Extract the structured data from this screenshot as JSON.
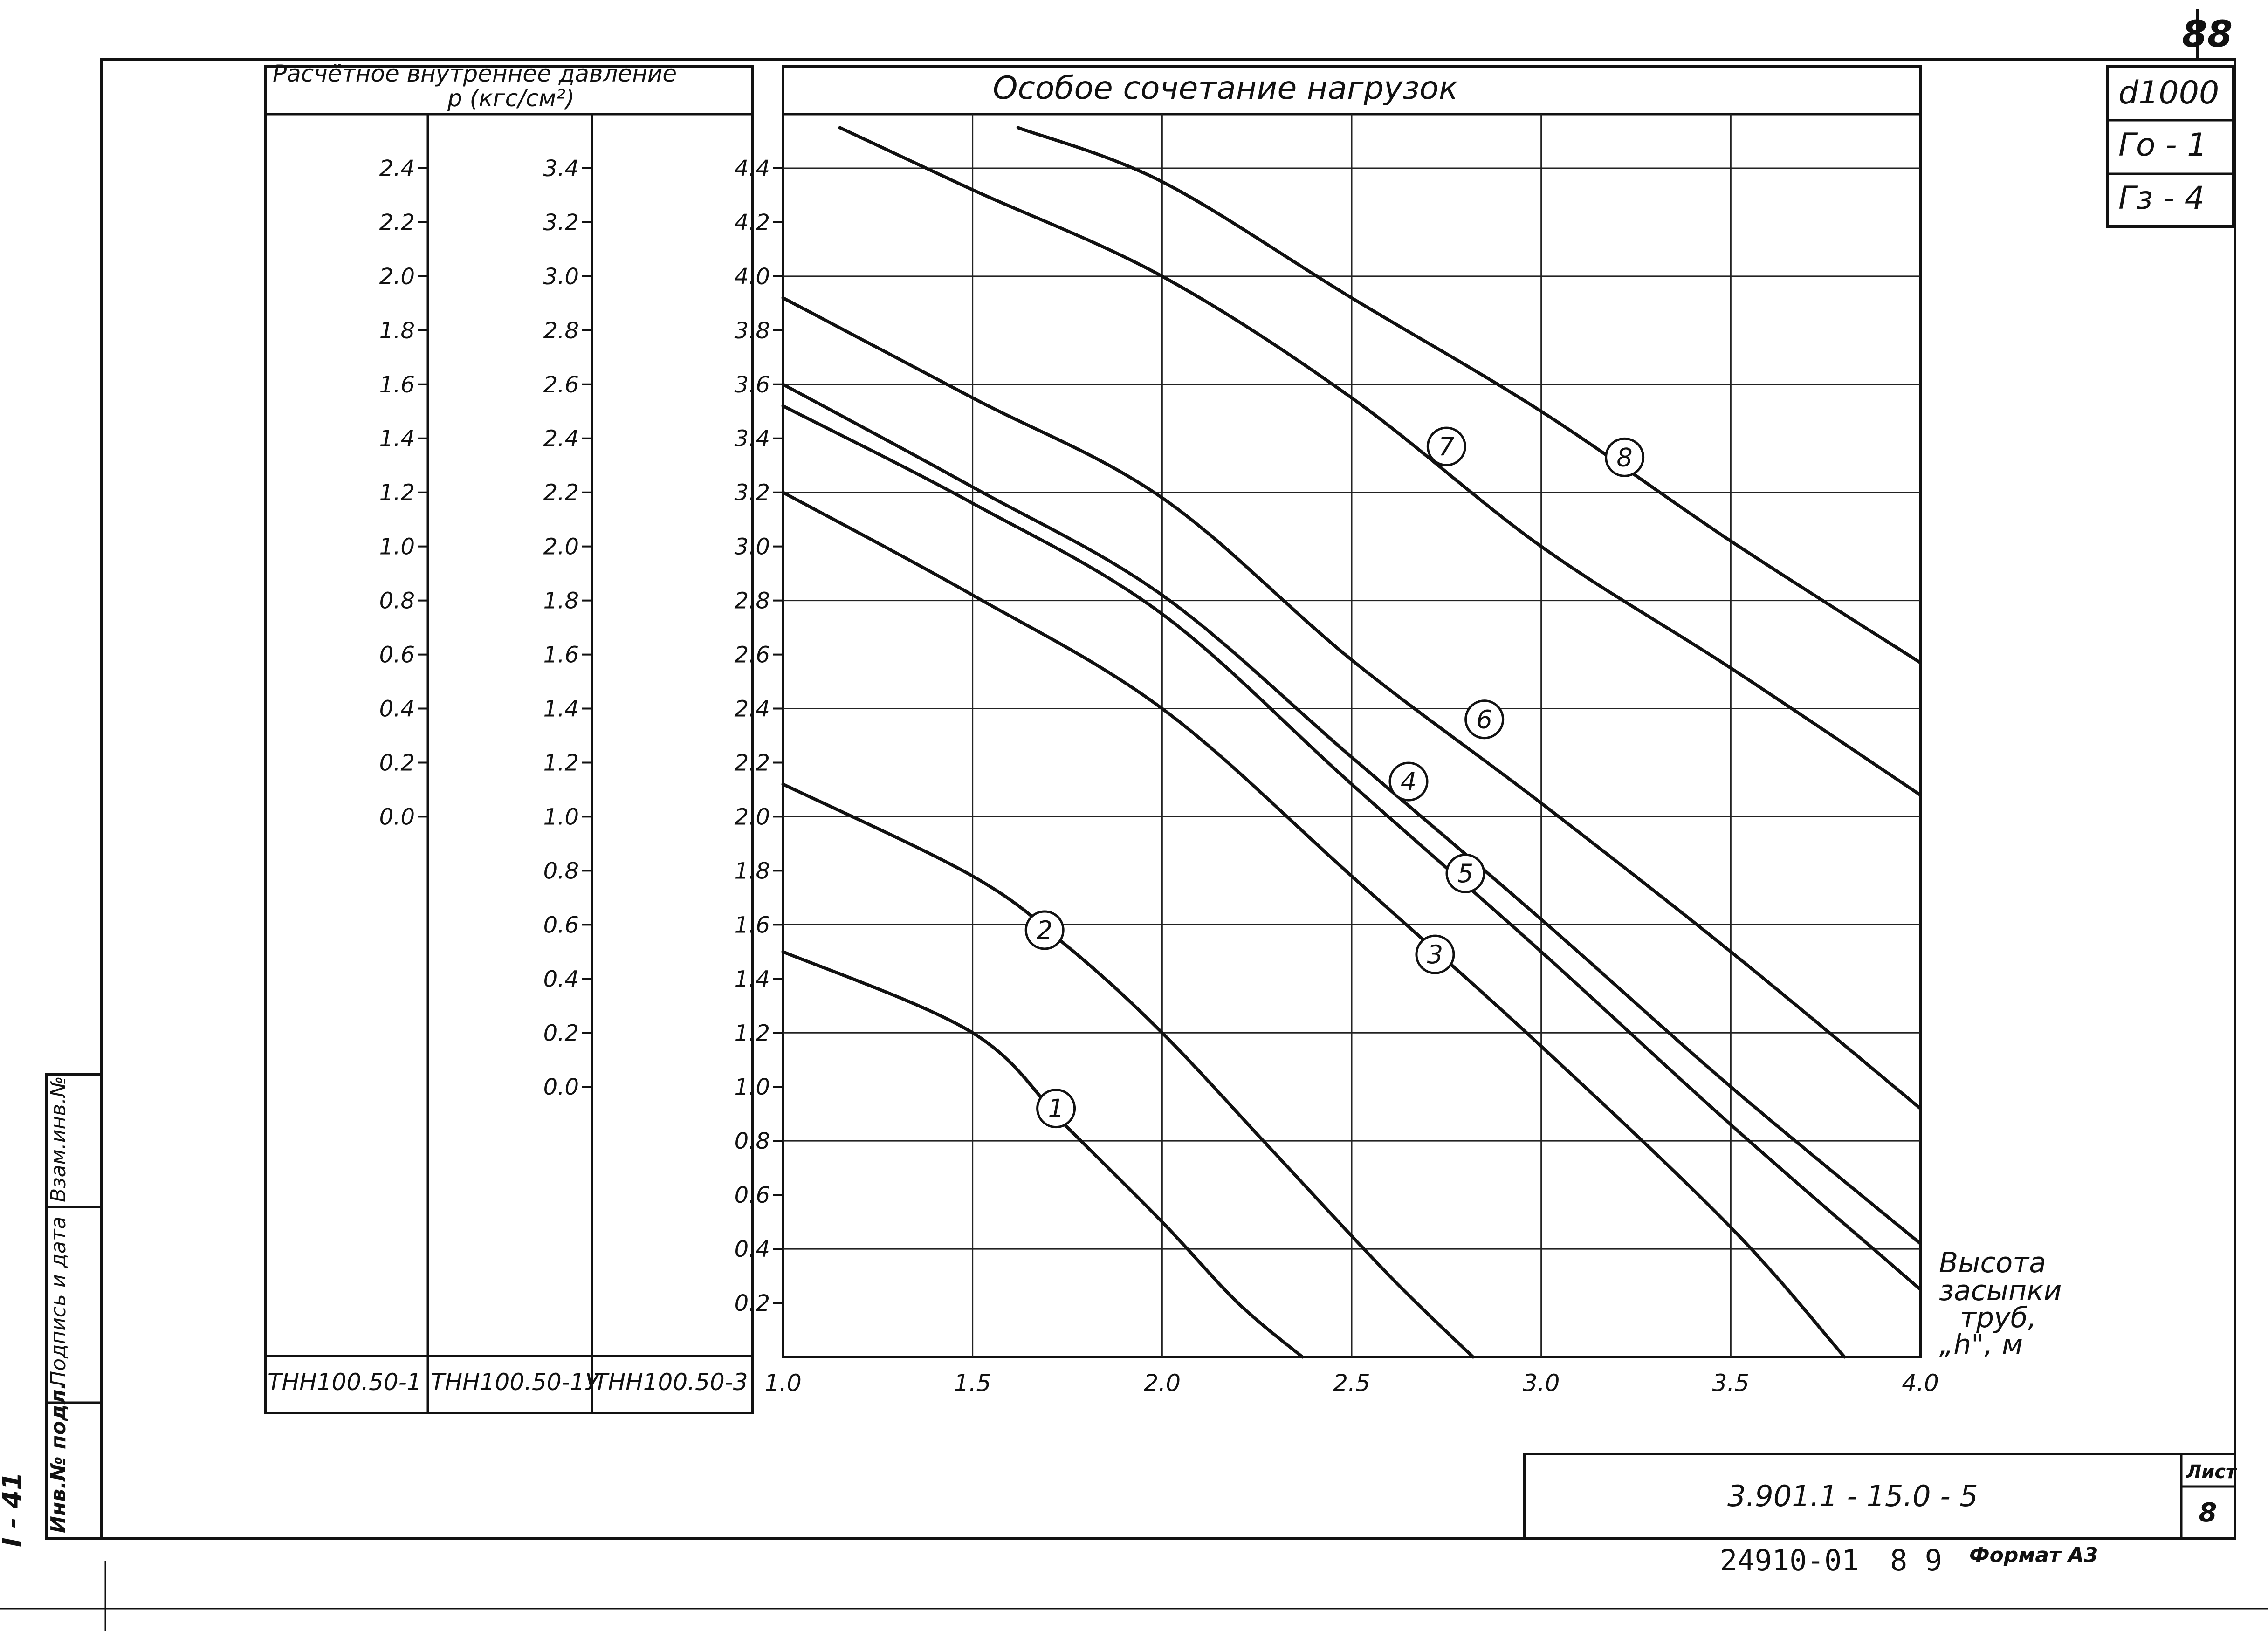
{
  "page_number": "88",
  "header": {
    "left_title_line1": "Расчётное внутреннее давление",
    "left_title_line2": "p (кгс/см²)",
    "chart_title": "Особое сочетание нагрузок"
  },
  "specs": [
    "d1000",
    "Гo - 1",
    "Гз - 4"
  ],
  "pressure_scales": [
    {
      "label": "ТНН100.50-1",
      "ticks": [
        "2.4",
        "2.2",
        "2.0",
        "1.8",
        "1.6",
        "1.4",
        "1.2",
        "1.0",
        "0.8",
        "0.6",
        "0.4",
        "0.2",
        "0.0"
      ]
    },
    {
      "label": "ТНН100.50-1У",
      "ticks": [
        "3.4",
        "3.2",
        "3.0",
        "2.8",
        "2.6",
        "2.4",
        "2.2",
        "2.0",
        "1.8",
        "1.6",
        "1.4",
        "1.2",
        "1.0",
        "0.8",
        "0.6",
        "0.4",
        "0.2",
        "0.0"
      ]
    },
    {
      "label": "ТНН100.50-3",
      "ticks": [
        "4.4",
        "4.2",
        "4.0",
        "3.8",
        "3.6",
        "3.4",
        "3.2",
        "3.0",
        "2.8",
        "2.6",
        "2.4",
        "2.2",
        "2.0",
        "1.8",
        "1.6",
        "1.4",
        "1.2",
        "1.0",
        "0.8",
        "0.6",
        "0.4",
        "0.2"
      ]
    }
  ],
  "axis_label": [
    "Высота",
    "засыпки",
    "труб,",
    "„h\", м"
  ],
  "title_block": {
    "doc_number": "3.901.1 - 15.0 - 5",
    "sheet_label": "Лист",
    "sheet_number": "8",
    "bottom_code": "24910-01",
    "bottom_num": "8 9",
    "format_label": "Формат А3"
  },
  "side_stamp": {
    "col1": "Инв.№ подл.",
    "col2": "Подпись и дата",
    "col3": "Взам.инв.№",
    "sheet_marker": "I - 41"
  },
  "chart_data": {
    "type": "line",
    "title": "Особое сочетание нагрузок",
    "xlabel": "Высота засыпки труб, „h\", м",
    "ylabel": "Расчётное внутреннее давление p (кгс/см²)",
    "xlim": [
      1.0,
      4.0
    ],
    "ylim": [
      0.0,
      4.6
    ],
    "x_ticks": [
      "1.0",
      "1.5",
      "2.0",
      "2.5",
      "3.0",
      "3.5",
      "4.0"
    ],
    "grid": true,
    "y_scale_reference": "ТНН100.50-3",
    "series": [
      {
        "name": "1",
        "x": [
          1.0,
          1.5,
          1.75,
          2.0,
          2.2,
          2.37
        ],
        "y": [
          1.5,
          1.2,
          0.85,
          0.5,
          0.2,
          0.0
        ]
      },
      {
        "name": "2",
        "x": [
          1.0,
          1.5,
          1.75,
          2.0,
          2.3,
          2.6,
          2.82
        ],
        "y": [
          2.12,
          1.78,
          1.52,
          1.2,
          0.75,
          0.3,
          0.0
        ]
      },
      {
        "name": "3",
        "x": [
          1.0,
          1.5,
          2.0,
          2.5,
          3.0,
          3.5,
          3.8
        ],
        "y": [
          3.2,
          2.82,
          2.4,
          1.78,
          1.15,
          0.48,
          0.0
        ]
      },
      {
        "name": "4",
        "x": [
          1.0,
          1.5,
          2.0,
          2.5,
          3.0,
          3.5,
          4.0
        ],
        "y": [
          3.6,
          3.22,
          2.82,
          2.22,
          1.62,
          1.0,
          0.42
        ]
      },
      {
        "name": "5",
        "x": [
          1.0,
          1.5,
          2.0,
          2.5,
          3.0,
          3.5,
          4.0
        ],
        "y": [
          3.52,
          3.16,
          2.75,
          2.12,
          1.5,
          0.86,
          0.25
        ]
      },
      {
        "name": "6",
        "x": [
          1.0,
          1.5,
          2.0,
          2.5,
          3.0,
          3.5,
          4.0
        ],
        "y": [
          3.92,
          3.55,
          3.18,
          2.58,
          2.05,
          1.5,
          0.92
        ]
      },
      {
        "name": "7",
        "x": [
          1.15,
          1.5,
          2.0,
          2.5,
          3.0,
          3.5,
          4.0
        ],
        "y": [
          4.55,
          4.32,
          4.0,
          3.55,
          3.0,
          2.55,
          2.08
        ]
      },
      {
        "name": "8",
        "x": [
          1.62,
          2.0,
          2.5,
          3.0,
          3.5,
          4.0
        ],
        "y": [
          4.55,
          4.35,
          3.92,
          3.5,
          3.02,
          2.57
        ]
      }
    ],
    "curve_label_positions": [
      {
        "name": "1",
        "x": 1.72,
        "y": 0.92
      },
      {
        "name": "2",
        "x": 1.69,
        "y": 1.58
      },
      {
        "name": "3",
        "x": 2.72,
        "y": 1.49
      },
      {
        "name": "4",
        "x": 2.65,
        "y": 2.13
      },
      {
        "name": "5",
        "x": 2.8,
        "y": 1.79
      },
      {
        "name": "6",
        "x": 2.85,
        "y": 2.36
      },
      {
        "name": "7",
        "x": 2.75,
        "y": 3.37
      },
      {
        "name": "8",
        "x": 3.22,
        "y": 3.33
      }
    ]
  }
}
